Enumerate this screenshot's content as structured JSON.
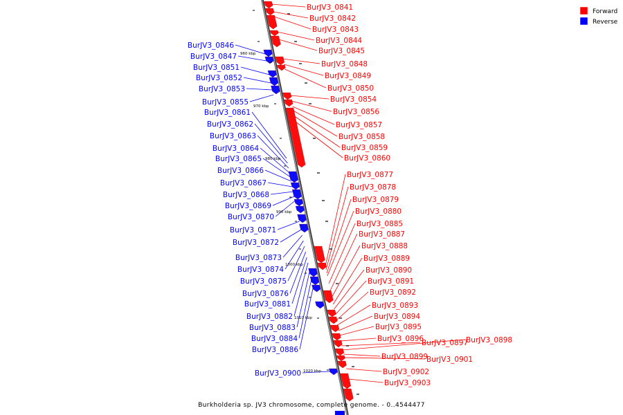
{
  "caption": "Burkholderia sp. JV3 chromosome, complete genome. - 0..4544477",
  "legend": [
    {
      "label": "Forward",
      "color": "#ff0000"
    },
    {
      "label": "Reverse",
      "color": "#0000ff"
    }
  ],
  "colors": {
    "forward": "#ff0000",
    "reverse": "#0000ff",
    "axis": "#808080"
  },
  "kbp_ticks": [
    "960 kbp",
    "970 kbp",
    "980 kbp",
    "990 kbp",
    "1000 kbp",
    "1010 kbp",
    "1020 kbp"
  ],
  "forward_genes": [
    "BurJV3_0841",
    "BurJV3_0842",
    "BurJV3_0843",
    "BurJV3_0844",
    "BurJV3_0845",
    "BurJV3_0848",
    "BurJV3_0849",
    "BurJV3_0850",
    "BurJV3_0854",
    "BurJV3_0856",
    "BurJV3_0857",
    "BurJV3_0858",
    "BurJV3_0859",
    "BurJV3_0860",
    "BurJV3_0877",
    "BurJV3_0878",
    "BurJV3_0879",
    "BurJV3_0880",
    "BurJV3_0885",
    "BurJV3_0887",
    "BurJV3_0888",
    "BurJV3_0889",
    "BurJV3_0890",
    "BurJV3_0891",
    "BurJV3_0892",
    "BurJV3_0893",
    "BurJV3_0894",
    "BurJV3_0895",
    "BurJV3_0896",
    "BurJV3_0897",
    "BurJV3_0898",
    "BurJV3_0899",
    "BurJV3_0901",
    "BurJV3_0902",
    "BurJV3_0903"
  ],
  "reverse_genes": [
    "BurJV3_0846",
    "BurJV3_0847",
    "BurJV3_0851",
    "BurJV3_0852",
    "BurJV3_0853",
    "BurJV3_0855",
    "BurJV3_0861",
    "BurJV3_0862",
    "BurJV3_0863",
    "BurJV3_0864",
    "BurJV3_0865",
    "BurJV3_0866",
    "BurJV3_0867",
    "BurJV3_0868",
    "BurJV3_0869",
    "BurJV3_0870",
    "BurJV3_0871",
    "BurJV3_0872",
    "BurJV3_0873",
    "BurJV3_0874",
    "BurJV3_0875",
    "BurJV3_0876",
    "BurJV3_0881",
    "BurJV3_0882",
    "BurJV3_0883",
    "BurJV3_0884",
    "BurJV3_0886",
    "BurJV3_0900"
  ]
}
